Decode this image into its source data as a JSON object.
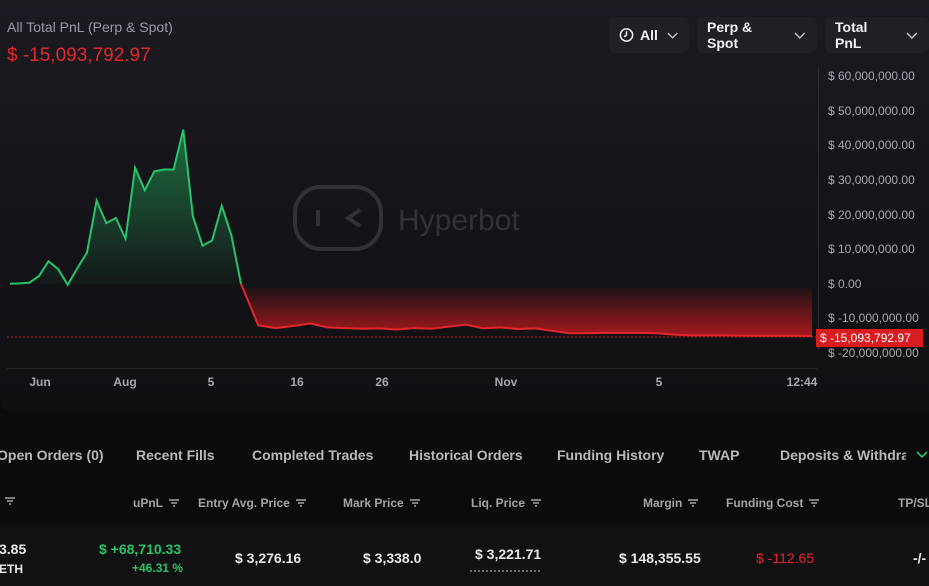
{
  "header": {
    "title": "All Total PnL (Perp & Spot)",
    "pnl_value": "$ -15,093,792.97"
  },
  "filters": {
    "time": "All",
    "market": "Perp & Spot",
    "metric": "Total PnL"
  },
  "watermark": "Hyperbot",
  "chart_data": {
    "type": "area",
    "x_ticks": [
      "Jun",
      "Aug",
      "5",
      "16",
      "26",
      "Nov",
      "5",
      "12:44"
    ],
    "y_ticks": [
      "$ 60,000,000.00",
      "$ 50,000,000.00",
      "$ 40,000,000.00",
      "$ 30,000,000.00",
      "$ 20,000,000.00",
      "$ 10,000,000.00",
      "$ 0.00",
      "$ -10,000,000.00",
      "$ -20,000,000.00"
    ],
    "ylim": [
      -20000000,
      60000000
    ],
    "current_value_label": "$ -15,093,792.97",
    "current_value": -15093792.97,
    "colors": {
      "positive": "#27c46a",
      "negative": "#e2272c"
    },
    "series": [
      {
        "values": [
          0,
          100000,
          300000,
          2200000,
          6500000,
          4200000,
          -300000,
          4500000,
          9000000,
          24000000,
          17500000,
          19000000,
          13000000,
          33500000,
          27000000,
          32500000,
          33000000,
          33000000,
          44500000,
          19500000,
          11000000,
          12500000,
          22500000,
          14000000,
          0,
          -12000000,
          -12800000,
          -12200000,
          -11500000,
          -12600000,
          -12800000,
          -13000000,
          -12900000,
          -13200000,
          -12800000,
          -13000000,
          -12400000,
          -11800000,
          -12900000,
          -12600000,
          -13100000,
          -12900000,
          -13600000,
          -14300000,
          -14300000,
          -14200000,
          -14200000,
          -14200000,
          -14300000,
          -14700000,
          -14900000,
          -14900000,
          -14900000,
          -15000000,
          -15000000,
          -15000000,
          -15000000,
          -15093792.97
        ]
      }
    ]
  },
  "tabs": [
    "Open Orders (0)",
    "Recent Fills",
    "Completed Trades",
    "Historical Orders",
    "Funding History",
    "TWAP",
    "Deposits & Withdraw"
  ],
  "table": {
    "columns": [
      "uPnL",
      "Entry Avg. Price",
      "Mark Price",
      "Liq. Price",
      "Margin",
      "Funding Cost",
      "TP/SL"
    ],
    "row": {
      "size_partial": "3.85",
      "coin_partial": "ETH",
      "upnl": "$ +68,710.33",
      "upnl_pct": "+46.31 %",
      "entry_price": "$ 3,276.16",
      "mark_price": "$ 3,338.0",
      "liq_price": "$ 3,221.71",
      "margin": "$ 148,355.55",
      "funding_cost": "$ -112.65",
      "tpsl": "-/-"
    }
  }
}
